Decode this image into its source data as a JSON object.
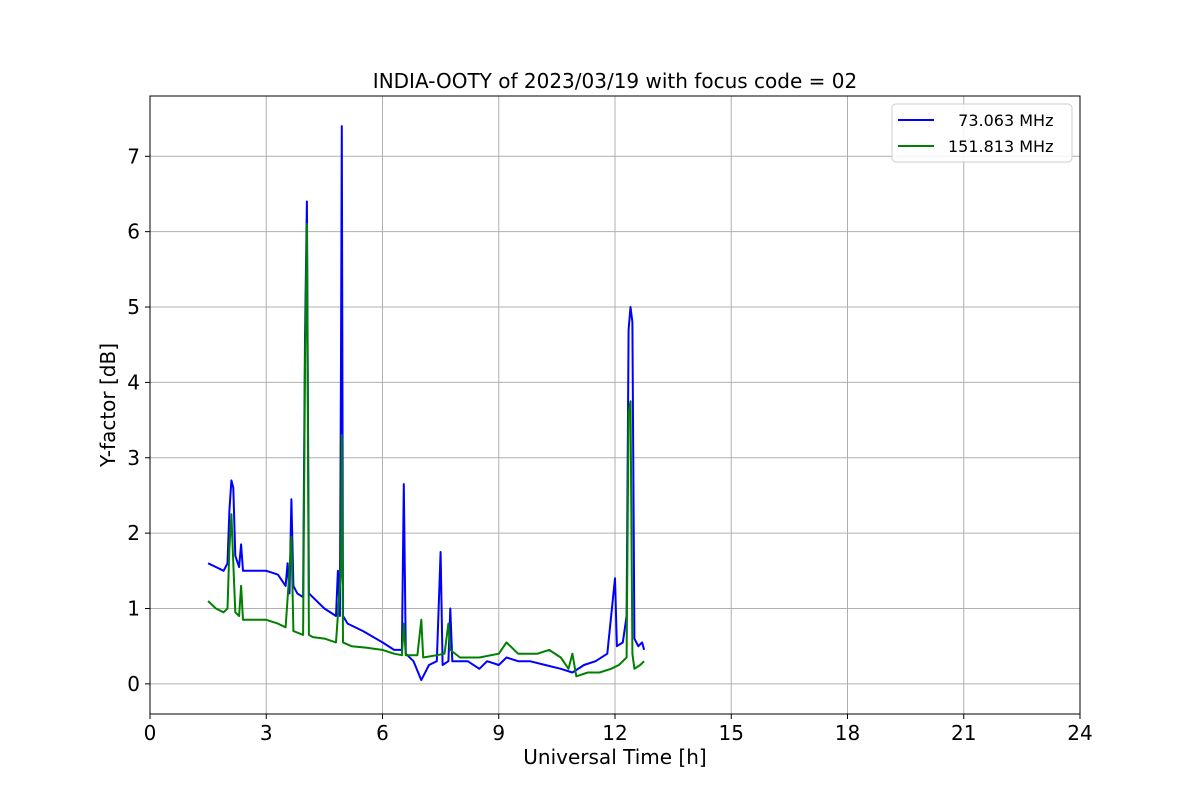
{
  "chart_data": {
    "type": "line",
    "title": "INDIA-OOTY of 2023/03/19 with focus code = 02",
    "xlabel": "Universal Time [h]",
    "ylabel": "Y-factor [dB]",
    "xlim": [
      0,
      24
    ],
    "ylim": [
      -0.4,
      7.8
    ],
    "xticks": [
      0,
      3,
      6,
      9,
      12,
      15,
      18,
      21,
      24
    ],
    "yticks": [
      0,
      1,
      2,
      3,
      4,
      5,
      6,
      7
    ],
    "grid": true,
    "legend_position": "top-right",
    "series": [
      {
        "name": "73.063 MHz",
        "legend_label": "  73.063 MHz",
        "color": "#0000ff",
        "points": [
          [
            1.5,
            1.6
          ],
          [
            1.7,
            1.55
          ],
          [
            1.9,
            1.5
          ],
          [
            2.0,
            1.6
          ],
          [
            2.05,
            2.3
          ],
          [
            2.1,
            2.7
          ],
          [
            2.15,
            2.6
          ],
          [
            2.2,
            1.7
          ],
          [
            2.3,
            1.55
          ],
          [
            2.35,
            1.85
          ],
          [
            2.4,
            1.5
          ],
          [
            2.7,
            1.5
          ],
          [
            3.0,
            1.5
          ],
          [
            3.3,
            1.45
          ],
          [
            3.5,
            1.3
          ],
          [
            3.55,
            1.6
          ],
          [
            3.6,
            1.2
          ],
          [
            3.65,
            2.45
          ],
          [
            3.7,
            1.3
          ],
          [
            3.8,
            1.2
          ],
          [
            3.95,
            1.15
          ],
          [
            4.0,
            4.6
          ],
          [
            4.05,
            6.4
          ],
          [
            4.1,
            1.2
          ],
          [
            4.2,
            1.15
          ],
          [
            4.5,
            1.0
          ],
          [
            4.8,
            0.9
          ],
          [
            4.85,
            1.5
          ],
          [
            4.9,
            0.9
          ],
          [
            4.93,
            4.3
          ],
          [
            4.95,
            7.4
          ],
          [
            4.98,
            0.9
          ],
          [
            5.1,
            0.8
          ],
          [
            5.5,
            0.7
          ],
          [
            6.0,
            0.55
          ],
          [
            6.3,
            0.45
          ],
          [
            6.5,
            0.45
          ],
          [
            6.55,
            2.65
          ],
          [
            6.6,
            0.4
          ],
          [
            6.8,
            0.3
          ],
          [
            7.0,
            0.05
          ],
          [
            7.2,
            0.25
          ],
          [
            7.4,
            0.3
          ],
          [
            7.5,
            1.75
          ],
          [
            7.55,
            0.25
          ],
          [
            7.7,
            0.3
          ],
          [
            7.75,
            1.0
          ],
          [
            7.8,
            0.3
          ],
          [
            8.2,
            0.3
          ],
          [
            8.5,
            0.2
          ],
          [
            8.7,
            0.3
          ],
          [
            9.0,
            0.25
          ],
          [
            9.2,
            0.35
          ],
          [
            9.5,
            0.3
          ],
          [
            9.8,
            0.3
          ],
          [
            10.2,
            0.25
          ],
          [
            10.6,
            0.2
          ],
          [
            10.9,
            0.15
          ],
          [
            11.2,
            0.25
          ],
          [
            11.5,
            0.3
          ],
          [
            11.8,
            0.4
          ],
          [
            12.0,
            1.4
          ],
          [
            12.05,
            0.5
          ],
          [
            12.2,
            0.55
          ],
          [
            12.3,
            0.9
          ],
          [
            12.35,
            4.7
          ],
          [
            12.4,
            5.0
          ],
          [
            12.45,
            4.8
          ],
          [
            12.5,
            0.6
          ],
          [
            12.6,
            0.5
          ],
          [
            12.7,
            0.55
          ],
          [
            12.75,
            0.45
          ]
        ]
      },
      {
        "name": "151.813 MHz",
        "legend_label": "151.813 MHz",
        "color": "#008000",
        "points": [
          [
            1.5,
            1.1
          ],
          [
            1.7,
            1.0
          ],
          [
            1.9,
            0.95
          ],
          [
            2.0,
            1.0
          ],
          [
            2.05,
            1.8
          ],
          [
            2.1,
            2.25
          ],
          [
            2.15,
            1.6
          ],
          [
            2.2,
            0.95
          ],
          [
            2.3,
            0.9
          ],
          [
            2.35,
            1.3
          ],
          [
            2.4,
            0.85
          ],
          [
            2.7,
            0.85
          ],
          [
            3.0,
            0.85
          ],
          [
            3.3,
            0.8
          ],
          [
            3.5,
            0.75
          ],
          [
            3.6,
            1.5
          ],
          [
            3.65,
            1.95
          ],
          [
            3.7,
            0.7
          ],
          [
            3.8,
            0.68
          ],
          [
            3.95,
            0.65
          ],
          [
            4.0,
            4.2
          ],
          [
            4.05,
            6.1
          ],
          [
            4.1,
            0.65
          ],
          [
            4.2,
            0.62
          ],
          [
            4.5,
            0.6
          ],
          [
            4.8,
            0.55
          ],
          [
            4.93,
            1.5
          ],
          [
            4.95,
            3.3
          ],
          [
            4.98,
            0.55
          ],
          [
            5.2,
            0.5
          ],
          [
            5.6,
            0.48
          ],
          [
            6.0,
            0.45
          ],
          [
            6.3,
            0.4
          ],
          [
            6.5,
            0.38
          ],
          [
            6.55,
            0.8
          ],
          [
            6.6,
            0.38
          ],
          [
            6.9,
            0.38
          ],
          [
            7.0,
            0.85
          ],
          [
            7.05,
            0.35
          ],
          [
            7.4,
            0.38
          ],
          [
            7.6,
            0.4
          ],
          [
            7.7,
            0.8
          ],
          [
            7.75,
            0.45
          ],
          [
            8.0,
            0.35
          ],
          [
            8.5,
            0.35
          ],
          [
            9.0,
            0.4
          ],
          [
            9.2,
            0.55
          ],
          [
            9.5,
            0.4
          ],
          [
            10.0,
            0.4
          ],
          [
            10.3,
            0.45
          ],
          [
            10.6,
            0.35
          ],
          [
            10.8,
            0.2
          ],
          [
            10.9,
            0.4
          ],
          [
            11.0,
            0.1
          ],
          [
            11.3,
            0.15
          ],
          [
            11.6,
            0.15
          ],
          [
            11.9,
            0.2
          ],
          [
            12.1,
            0.25
          ],
          [
            12.3,
            0.35
          ],
          [
            12.35,
            3.6
          ],
          [
            12.4,
            3.75
          ],
          [
            12.45,
            0.4
          ],
          [
            12.5,
            0.2
          ],
          [
            12.65,
            0.25
          ],
          [
            12.75,
            0.3
          ]
        ]
      }
    ]
  }
}
